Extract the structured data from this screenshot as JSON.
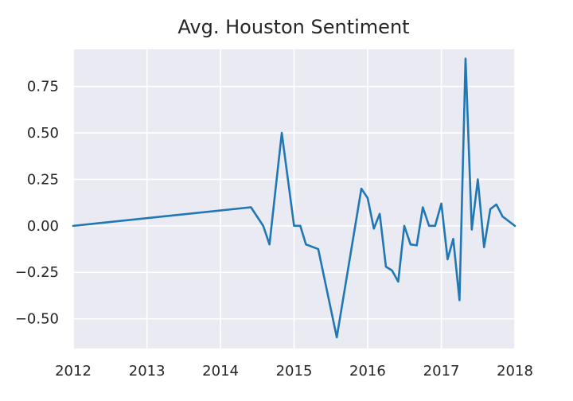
{
  "chart_data": {
    "type": "line",
    "title": "Avg. Houston Sentiment",
    "xlabel": "",
    "ylabel": "",
    "x_axis_type": "date",
    "xlim": [
      "2012-01-01",
      "2018-01-01"
    ],
    "ylim": [
      -0.66,
      0.95
    ],
    "x_ticks": [
      "2012",
      "2013",
      "2014",
      "2015",
      "2016",
      "2017",
      "2018"
    ],
    "y_ticks": [
      0.75,
      0.5,
      0.25,
      0.0,
      -0.25,
      -0.5
    ],
    "y_tick_labels": [
      "0.75",
      "0.50",
      "0.25",
      "0.00",
      "−0.25",
      "−0.50"
    ],
    "grid": true,
    "background_color": "#eaeaf2",
    "grid_color": "#ffffff",
    "series": [
      {
        "color": "#1f77b4",
        "x": [
          "2012-01-01",
          "2014-06-01",
          "2014-08-01",
          "2014-09-01",
          "2014-11-01",
          "2015-01-01",
          "2015-02-01",
          "2015-03-01",
          "2015-05-01",
          "2015-08-01",
          "2015-12-01",
          "2016-01-01",
          "2016-02-01",
          "2016-03-01",
          "2016-04-01",
          "2016-05-01",
          "2016-06-01",
          "2016-07-01",
          "2016-08-01",
          "2016-09-01",
          "2016-10-01",
          "2016-11-01",
          "2016-12-01",
          "2017-01-01",
          "2017-02-01",
          "2017-03-01",
          "2017-04-01",
          "2017-05-01",
          "2017-06-01",
          "2017-07-01",
          "2017-08-01",
          "2017-09-01",
          "2017-10-01",
          "2017-11-01",
          "2018-01-01"
        ],
        "y": [
          0.0,
          0.1,
          0.0,
          -0.1,
          0.5,
          0.0,
          0.0,
          -0.1,
          -0.125,
          -0.6,
          0.2,
          0.15,
          -0.015,
          0.065,
          -0.22,
          -0.24,
          -0.3,
          0.0,
          -0.1,
          -0.105,
          0.1,
          0.0,
          0.0,
          0.12,
          -0.18,
          -0.07,
          -0.4,
          0.9,
          -0.02,
          0.25,
          -0.115,
          0.09,
          0.115,
          0.05,
          0.0
        ]
      }
    ]
  }
}
